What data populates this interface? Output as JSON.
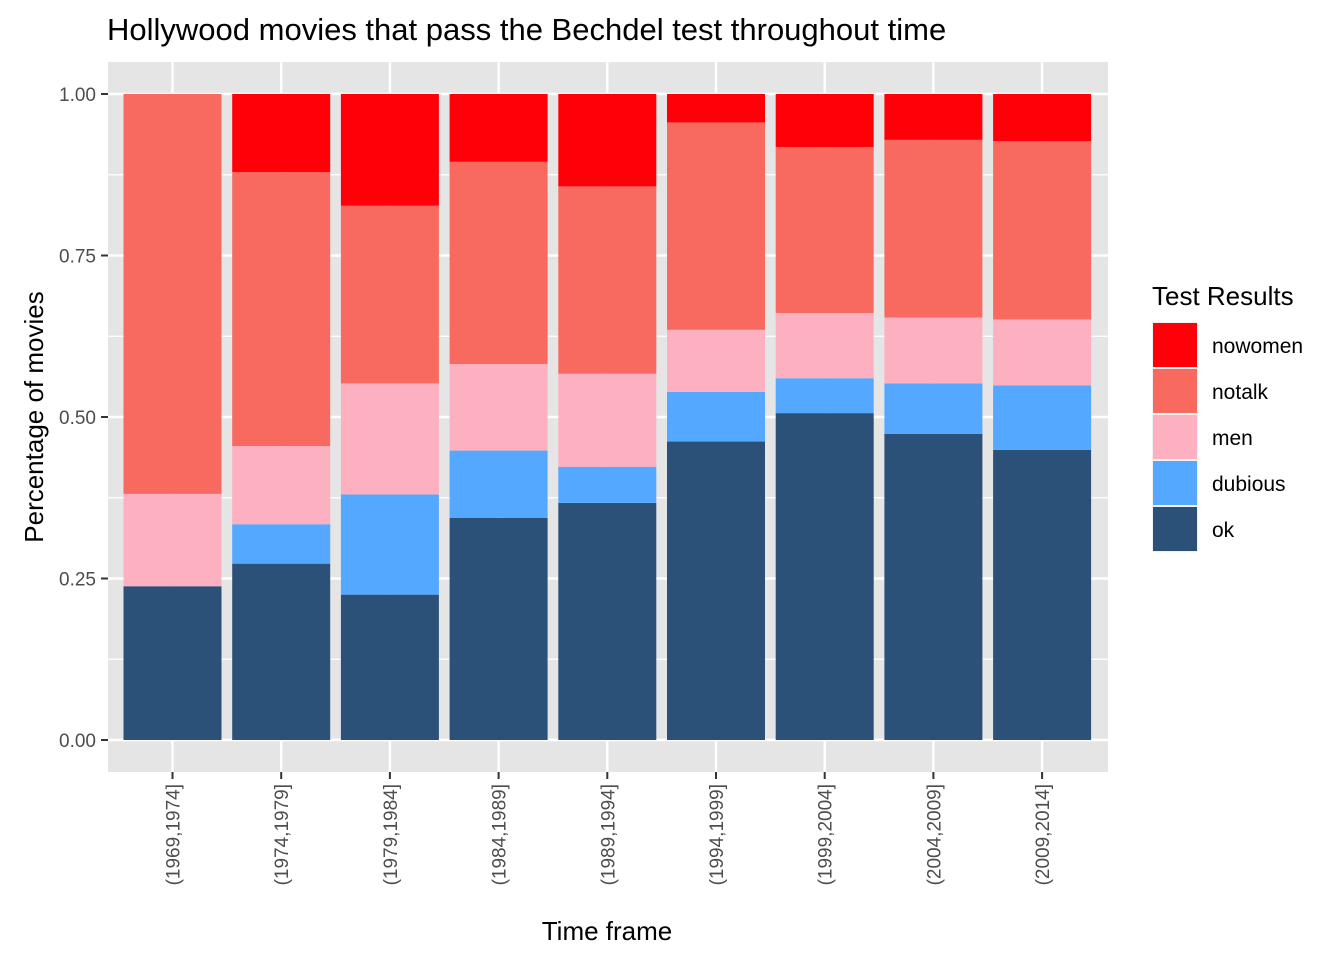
{
  "chart_data": {
    "type": "bar",
    "stacked": true,
    "title": "Hollywood movies that pass the Bechdel test throughout time",
    "xlabel": "Time frame",
    "ylabel": "Percentage of movies",
    "ylim": [
      0,
      1
    ],
    "yticks": [
      "0.00",
      "0.25",
      "0.50",
      "0.75",
      "1.00"
    ],
    "grid": true,
    "legend_position": "right",
    "legend_title": "Test Results",
    "categories": [
      "(1969,1974]",
      "(1974,1979]",
      "(1979,1984]",
      "(1984,1989]",
      "(1989,1994]",
      "(1994,1999]",
      "(1999,2004]",
      "(2004,2009]",
      "(2009,2014]"
    ],
    "series": [
      {
        "name": "ok",
        "color": "#2c5179",
        "values": [
          0.238,
          0.273,
          0.225,
          0.344,
          0.367,
          0.462,
          0.506,
          0.474,
          0.449
        ]
      },
      {
        "name": "dubious",
        "color": "#55a8ff",
        "values": [
          0.0,
          0.061,
          0.155,
          0.104,
          0.056,
          0.077,
          0.054,
          0.078,
          0.1
        ]
      },
      {
        "name": "men",
        "color": "#fdb0c0",
        "values": [
          0.143,
          0.121,
          0.172,
          0.134,
          0.144,
          0.096,
          0.101,
          0.102,
          0.102
        ]
      },
      {
        "name": "notalk",
        "color": "#f8695f",
        "values": [
          0.619,
          0.424,
          0.275,
          0.313,
          0.29,
          0.321,
          0.257,
          0.275,
          0.276
        ]
      },
      {
        "name": "nowomen",
        "color": "#ff0008",
        "values": [
          0.0,
          0.121,
          0.173,
          0.105,
          0.143,
          0.044,
          0.082,
          0.071,
          0.073
        ]
      }
    ],
    "legend_order": [
      "nowomen",
      "notalk",
      "men",
      "dubious",
      "ok"
    ],
    "colors": {
      "panel": "#e5e5e5",
      "gridline": "#ffffff",
      "tick": "#333333"
    }
  }
}
